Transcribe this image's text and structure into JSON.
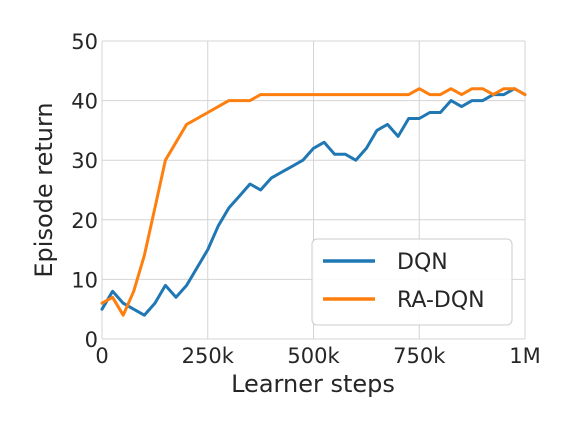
{
  "chart_data": {
    "type": "line",
    "title": "",
    "xlabel": "Learner steps",
    "ylabel": "Episode return",
    "xlim": [
      0,
      1000000
    ],
    "ylim": [
      0,
      50
    ],
    "xticks": [
      {
        "value": 0,
        "label": "0"
      },
      {
        "value": 250000,
        "label": "250k"
      },
      {
        "value": 500000,
        "label": "500k"
      },
      {
        "value": 750000,
        "label": "750k"
      },
      {
        "value": 1000000,
        "label": "1M"
      }
    ],
    "yticks": [
      {
        "value": 0,
        "label": "0"
      },
      {
        "value": 10,
        "label": "10"
      },
      {
        "value": 20,
        "label": "20"
      },
      {
        "value": 30,
        "label": "30"
      },
      {
        "value": 40,
        "label": "40"
      },
      {
        "value": 50,
        "label": "50"
      }
    ],
    "grid": true,
    "legend": "bottom-right",
    "x": [
      0,
      25000,
      50000,
      75000,
      100000,
      125000,
      150000,
      175000,
      200000,
      225000,
      250000,
      275000,
      300000,
      325000,
      350000,
      375000,
      400000,
      425000,
      450000,
      475000,
      500000,
      525000,
      550000,
      575000,
      600000,
      625000,
      650000,
      675000,
      700000,
      725000,
      750000,
      775000,
      800000,
      825000,
      850000,
      875000,
      900000,
      925000,
      950000,
      975000,
      1000000
    ],
    "series": [
      {
        "name": "DQN",
        "color": "#1f77b4",
        "values": [
          5,
          8,
          6,
          5,
          4,
          6,
          9,
          7,
          9,
          12,
          15,
          19,
          22,
          24,
          26,
          25,
          27,
          28,
          29,
          30,
          32,
          33,
          31,
          31,
          30,
          32,
          35,
          36,
          34,
          37,
          37,
          38,
          38,
          40,
          39,
          40,
          40,
          41,
          41,
          42,
          41
        ]
      },
      {
        "name": "RA-DQN",
        "color": "#ff7f0e",
        "values": [
          6,
          7,
          4,
          8,
          14,
          22,
          30,
          33,
          36,
          37,
          38,
          39,
          40,
          40,
          40,
          41,
          41,
          41,
          41,
          41,
          41,
          41,
          41,
          41,
          41,
          41,
          41,
          41,
          41,
          41,
          42,
          41,
          41,
          42,
          41,
          42,
          42,
          41,
          42,
          42,
          41
        ]
      }
    ]
  }
}
